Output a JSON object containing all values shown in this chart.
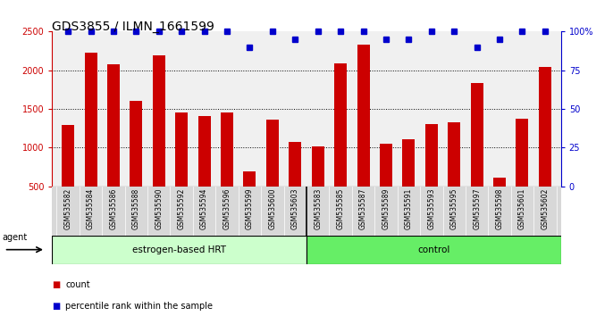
{
  "title": "GDS3855 / ILMN_1661599",
  "categories": [
    "GSM535582",
    "GSM535584",
    "GSM535586",
    "GSM535588",
    "GSM535590",
    "GSM535592",
    "GSM535594",
    "GSM535596",
    "GSM535599",
    "GSM535600",
    "GSM535603",
    "GSM535583",
    "GSM535585",
    "GSM535587",
    "GSM535589",
    "GSM535591",
    "GSM535593",
    "GSM535595",
    "GSM535597",
    "GSM535598",
    "GSM535601",
    "GSM535602"
  ],
  "bar_values": [
    1290,
    2230,
    2080,
    1600,
    2190,
    1450,
    1410,
    1460,
    690,
    1360,
    1070,
    1020,
    2090,
    2330,
    1050,
    1110,
    1310,
    1330,
    1840,
    610,
    1370,
    2040
  ],
  "percentile_values": [
    100,
    100,
    100,
    100,
    100,
    100,
    100,
    100,
    90,
    100,
    95,
    100,
    100,
    100,
    95,
    95,
    100,
    100,
    90,
    95,
    100,
    100
  ],
  "bar_color": "#cc0000",
  "dot_color": "#0000cc",
  "ylim_left": [
    500,
    2500
  ],
  "ylim_right": [
    0,
    100
  ],
  "yticks_left": [
    500,
    1000,
    1500,
    2000,
    2500
  ],
  "yticks_right": [
    0,
    25,
    50,
    75,
    100
  ],
  "ytick_labels_right": [
    "0",
    "25",
    "50",
    "75",
    "100%"
  ],
  "group1_label": "estrogen-based HRT",
  "group2_label": "control",
  "group1_count": 11,
  "group2_count": 11,
  "agent_label": "agent",
  "legend_count_label": "count",
  "legend_pct_label": "percentile rank within the sample",
  "tick_fontsize": 7,
  "label_fontsize": 8,
  "title_fontsize": 10,
  "group_bg_color1": "#ccffcc",
  "group_bg_color2": "#66ee66",
  "xtick_bg": "#d8d8d8",
  "plot_bg": "#f0f0f0"
}
